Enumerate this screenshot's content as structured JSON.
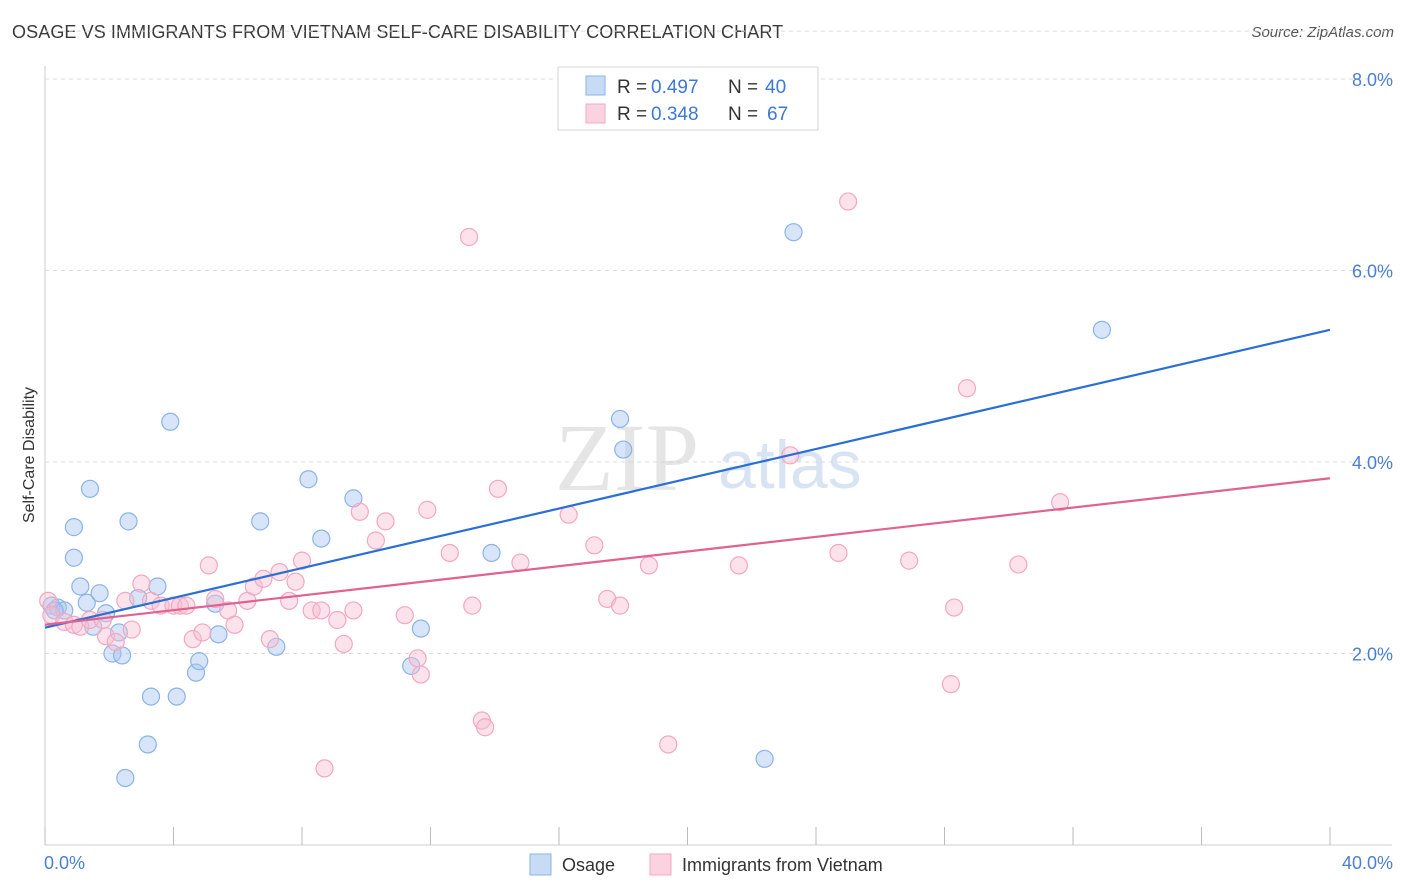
{
  "title": "OSAGE VS IMMIGRANTS FROM VIETNAM SELF-CARE DISABILITY CORRELATION CHART",
  "source": "Source: ZipAtlas.com",
  "watermark": {
    "zip": "ZIP",
    "atlas": "atlas"
  },
  "chart_data": {
    "type": "scatter",
    "title": "OSAGE VS IMMIGRANTS FROM VIETNAM SELF-CARE DISABILITY CORRELATION CHART",
    "xlabel": "",
    "ylabel": "Self-Care Disability",
    "xlim": [
      0,
      40
    ],
    "ylim": [
      0,
      8.5
    ],
    "x_ticks": [
      0,
      4,
      8,
      12,
      16,
      20,
      24,
      28,
      32,
      36,
      40
    ],
    "x_tick_labels": {
      "start": "0.0%",
      "end": "40.0%"
    },
    "y_ticks": [
      {
        "value": 2,
        "label": "2.0%"
      },
      {
        "value": 4,
        "label": "4.0%"
      },
      {
        "value": 6,
        "label": "6.0%"
      },
      {
        "value": 8,
        "label": "8.0%"
      }
    ],
    "grid": "horizontal dashed",
    "legend": {
      "placement": "top-center",
      "entries": [
        {
          "r_label": "R =",
          "r": "0.497",
          "n_label": "N =",
          "n": "40"
        },
        {
          "r_label": "R =",
          "r": "0.348",
          "n_label": "N =",
          "n": "67"
        }
      ]
    },
    "series": [
      {
        "name": "Osage",
        "color": "#8ab4e8",
        "line_color": "#2a6fd6",
        "trend": {
          "x": [
            0,
            40
          ],
          "y": [
            2.27,
            5.38
          ]
        },
        "points": [
          [
            0.2,
            2.5
          ],
          [
            0.4,
            2.48
          ],
          [
            0.6,
            2.45
          ],
          [
            0.9,
            3.0
          ],
          [
            0.9,
            3.32
          ],
          [
            1.1,
            2.7
          ],
          [
            1.3,
            2.53
          ],
          [
            1.4,
            3.72
          ],
          [
            1.5,
            2.28
          ],
          [
            1.7,
            2.63
          ],
          [
            1.9,
            2.42
          ],
          [
            2.1,
            2.0
          ],
          [
            2.3,
            2.22
          ],
          [
            2.4,
            1.98
          ],
          [
            2.6,
            3.38
          ],
          [
            2.9,
            2.58
          ],
          [
            3.2,
            1.05
          ],
          [
            3.3,
            1.55
          ],
          [
            3.5,
            2.7
          ],
          [
            3.9,
            4.42
          ],
          [
            4.1,
            1.55
          ],
          [
            4.7,
            1.8
          ],
          [
            4.8,
            1.92
          ],
          [
            5.3,
            2.52
          ],
          [
            5.4,
            2.2
          ],
          [
            6.7,
            3.38
          ],
          [
            7.2,
            2.07
          ],
          [
            8.2,
            3.82
          ],
          [
            8.6,
            3.2
          ],
          [
            9.6,
            3.62
          ],
          [
            11.4,
            1.87
          ],
          [
            11.7,
            2.26
          ],
          [
            13.9,
            3.05
          ],
          [
            17.9,
            4.45
          ],
          [
            18.0,
            4.13
          ],
          [
            22.4,
            0.9
          ],
          [
            23.3,
            6.4
          ],
          [
            32.9,
            5.38
          ],
          [
            2.5,
            0.7
          ],
          [
            0.3,
            2.45
          ]
        ]
      },
      {
        "name": "Immigrants from Vietnam",
        "color": "#f4a7c0",
        "line_color": "#e0628f",
        "trend": {
          "x": [
            0,
            40
          ],
          "y": [
            2.3,
            3.83
          ]
        },
        "points": [
          [
            0.1,
            2.55
          ],
          [
            0.2,
            2.4
          ],
          [
            0.6,
            2.33
          ],
          [
            0.9,
            2.3
          ],
          [
            1.1,
            2.28
          ],
          [
            1.4,
            2.35
          ],
          [
            1.8,
            2.35
          ],
          [
            1.9,
            2.18
          ],
          [
            2.2,
            2.12
          ],
          [
            2.5,
            2.55
          ],
          [
            2.7,
            2.25
          ],
          [
            3.0,
            2.73
          ],
          [
            3.3,
            2.55
          ],
          [
            3.6,
            2.5
          ],
          [
            4.0,
            2.5
          ],
          [
            4.2,
            2.5
          ],
          [
            4.4,
            2.5
          ],
          [
            4.6,
            2.15
          ],
          [
            4.9,
            2.22
          ],
          [
            5.1,
            2.92
          ],
          [
            5.3,
            2.57
          ],
          [
            5.7,
            2.45
          ],
          [
            5.9,
            2.3
          ],
          [
            6.3,
            2.55
          ],
          [
            6.5,
            2.7
          ],
          [
            6.8,
            2.78
          ],
          [
            7.0,
            2.15
          ],
          [
            7.3,
            2.85
          ],
          [
            7.6,
            2.55
          ],
          [
            7.8,
            2.75
          ],
          [
            8.0,
            2.97
          ],
          [
            8.3,
            2.45
          ],
          [
            8.6,
            2.45
          ],
          [
            8.7,
            0.8
          ],
          [
            9.1,
            2.35
          ],
          [
            9.3,
            2.1
          ],
          [
            9.6,
            2.45
          ],
          [
            9.8,
            3.48
          ],
          [
            10.3,
            3.18
          ],
          [
            10.6,
            3.38
          ],
          [
            11.2,
            2.4
          ],
          [
            11.6,
            1.95
          ],
          [
            11.7,
            1.78
          ],
          [
            11.9,
            3.5
          ],
          [
            12.6,
            3.05
          ],
          [
            13.2,
            6.35
          ],
          [
            13.3,
            2.5
          ],
          [
            13.6,
            1.3
          ],
          [
            13.7,
            1.23
          ],
          [
            14.1,
            3.72
          ],
          [
            14.8,
            2.95
          ],
          [
            16.3,
            3.45
          ],
          [
            17.1,
            3.13
          ],
          [
            17.5,
            2.57
          ],
          [
            17.9,
            2.5
          ],
          [
            18.8,
            2.92
          ],
          [
            19.4,
            1.05
          ],
          [
            21.6,
            2.92
          ],
          [
            23.2,
            4.07
          ],
          [
            24.7,
            3.05
          ],
          [
            25.0,
            6.72
          ],
          [
            26.9,
            2.97
          ],
          [
            28.2,
            1.68
          ],
          [
            28.3,
            2.48
          ],
          [
            28.7,
            4.77
          ],
          [
            30.3,
            2.93
          ],
          [
            31.6,
            3.58
          ]
        ]
      }
    ]
  }
}
